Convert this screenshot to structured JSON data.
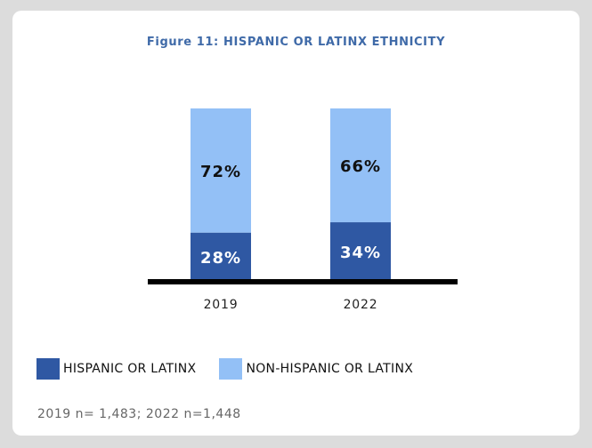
{
  "colors": {
    "hispanic": "#2f58a3",
    "non_hispanic": "#93c0f6",
    "title": "#3f6aa8",
    "baseline": "#000000",
    "label_on_dark": "#ffffff",
    "label_on_light": "#111111"
  },
  "chart_data": {
    "type": "bar",
    "stacked": true,
    "title": "Figure 11: HISPANIC OR LATINX ETHNICITY",
    "categories": [
      "2019",
      "2022"
    ],
    "series": [
      {
        "name": "HISPANIC OR LATINX",
        "values": [
          28,
          34
        ],
        "labels": [
          "28%",
          "34%"
        ]
      },
      {
        "name": "NON-HISPANIC OR LATINX",
        "values": [
          72,
          66
        ],
        "labels": [
          "72%",
          "66%"
        ]
      }
    ],
    "xlabel": "",
    "ylabel": "",
    "ylim": [
      0,
      100
    ],
    "legend": "bottom-left",
    "grid": false
  },
  "note": "2019 n= 1,483; 2022 n=1,448"
}
